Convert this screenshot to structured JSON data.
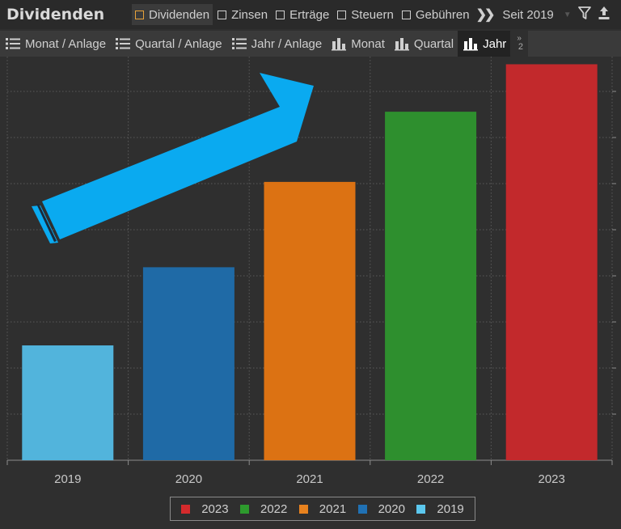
{
  "app": {
    "title": "Dividenden"
  },
  "filters": [
    {
      "label": "Dividenden",
      "active": true
    },
    {
      "label": "Zinsen",
      "active": false
    },
    {
      "label": "Erträge",
      "active": false
    },
    {
      "label": "Steuern",
      "active": false
    },
    {
      "label": "Gebühren",
      "active": false
    }
  ],
  "period": {
    "label": "Seit 2019"
  },
  "tabs": [
    {
      "label": "Monat / Anlage",
      "icon": "list-icon"
    },
    {
      "label": "Quartal / Anlage",
      "icon": "list-icon"
    },
    {
      "label": "Jahr / Anlage",
      "icon": "list-icon"
    },
    {
      "label": "Monat",
      "icon": "bar-chart-icon"
    },
    {
      "label": "Quartal",
      "icon": "bar-chart-icon"
    },
    {
      "label": "Jahr",
      "icon": "bar-chart-icon",
      "active": true
    }
  ],
  "tab_overflow": {
    "count": "2"
  },
  "chart_data": {
    "type": "bar",
    "categories": [
      "2019",
      "2020",
      "2021",
      "2022",
      "2023"
    ],
    "values": [
      28.8,
      48.4,
      69.8,
      87.4,
      99.3
    ],
    "ylim": [
      0,
      100
    ],
    "grid": true,
    "colors": [
      "#52b4dc",
      "#1f6aa6",
      "#dc7213",
      "#2e8f2e",
      "#c2292c"
    ],
    "legend": {
      "placement": "bottom-center",
      "items": [
        {
          "label": "2023",
          "color": "#d42a2c"
        },
        {
          "label": "2022",
          "color": "#2d9a2d"
        },
        {
          "label": "2021",
          "color": "#e8821e"
        },
        {
          "label": "2020",
          "color": "#2071b4"
        },
        {
          "label": "2019",
          "color": "#5cc8ee"
        }
      ]
    },
    "annotation": {
      "type": "arrow",
      "color": "#0aaaf0",
      "direction": "up-right"
    }
  }
}
